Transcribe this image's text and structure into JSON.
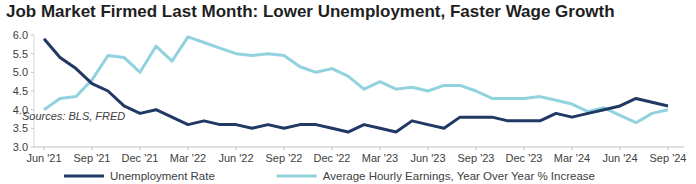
{
  "chart_data": {
    "type": "line",
    "title": "Job Market Firmed Last Month: Lower Unemployment, Faster Wage Growth",
    "annotations": [
      "Sources: BLS, FRED"
    ],
    "categories": [
      "Jun '21",
      null,
      null,
      "Sep '21",
      null,
      null,
      "Dec '21",
      null,
      null,
      "Mar '22",
      null,
      null,
      "Jun '22",
      null,
      null,
      "Sep '22",
      null,
      null,
      "Dec '22",
      null,
      null,
      "Mar '23",
      null,
      null,
      "Jun '23",
      null,
      null,
      "Sep '23",
      null,
      null,
      "Dec '23",
      null,
      null,
      "Mar '24",
      null,
      null,
      "Jun '24",
      null,
      null,
      "Sep '24"
    ],
    "series": [
      {
        "name": "Unemployment Rate",
        "color": "#1f3864",
        "values": [
          5.9,
          5.4,
          5.1,
          4.7,
          4.5,
          4.1,
          3.9,
          4.0,
          3.8,
          3.6,
          3.7,
          3.6,
          3.6,
          3.5,
          3.6,
          3.5,
          3.6,
          3.6,
          3.5,
          3.4,
          3.6,
          3.5,
          3.4,
          3.7,
          3.6,
          3.5,
          3.8,
          3.8,
          3.8,
          3.7,
          3.7,
          3.7,
          3.9,
          3.8,
          3.9,
          4.0,
          4.1,
          4.3,
          4.2,
          4.1
        ]
      },
      {
        "name": "Average Hourly Earnings, Year Over Year % Increase",
        "color": "#92d2de",
        "values": [
          4.0,
          4.3,
          4.35,
          4.8,
          5.45,
          5.4,
          5.0,
          5.7,
          5.3,
          5.95,
          5.8,
          5.65,
          5.5,
          5.45,
          5.5,
          5.45,
          5.15,
          5.0,
          5.1,
          4.9,
          4.55,
          4.75,
          4.55,
          4.6,
          4.5,
          4.65,
          4.65,
          4.5,
          4.3,
          4.3,
          4.3,
          4.35,
          4.25,
          4.15,
          3.95,
          4.05,
          3.85,
          3.65,
          3.9,
          4.0
        ]
      }
    ],
    "ylim": [
      3,
      6
    ],
    "yticks": [
      {
        "value": 3,
        "label": "3.0"
      },
      3.5,
      {
        "value": 4,
        "label": "4.0"
      },
      4.5,
      {
        "value": 5,
        "label": "5.0"
      },
      5.5,
      {
        "value": 6,
        "label": "6.0"
      }
    ],
    "grid": false,
    "legend": "bottom"
  }
}
